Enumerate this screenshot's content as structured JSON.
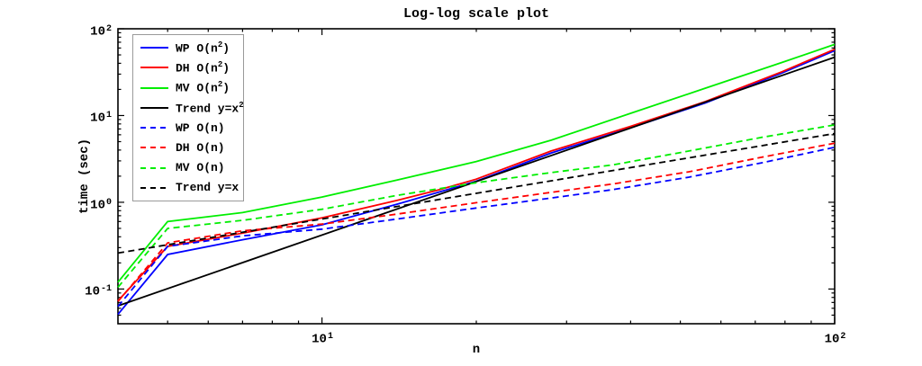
{
  "chart_data": {
    "type": "line",
    "title": "Log-log scale plot",
    "xlabel": "n",
    "ylabel": "time (sec)",
    "log_x": true,
    "log_y": true,
    "x_range": [
      4,
      100
    ],
    "y_range": [
      0.0398,
      100
    ],
    "grid": false,
    "frame_color": "#000000",
    "x_major_ticks": [
      10,
      100
    ],
    "x_minor_ticks": [
      5,
      6,
      7,
      8,
      9,
      20,
      30,
      40,
      50,
      60,
      70,
      80,
      90
    ],
    "y_major_ticks": [
      0.1,
      1,
      10,
      100
    ],
    "y_minor_ticks": [
      0.05,
      0.06,
      0.07,
      0.08,
      0.09,
      0.2,
      0.3,
      0.4,
      0.5,
      0.6,
      0.7,
      0.8,
      0.9,
      2,
      3,
      4,
      5,
      6,
      7,
      8,
      9,
      20,
      30,
      40,
      50,
      60,
      70,
      80,
      90
    ],
    "x_tick_labels": [
      {
        "value": 10,
        "base": "10",
        "exp": "1"
      },
      {
        "value": 100,
        "base": "10",
        "exp": "2"
      }
    ],
    "y_tick_labels": [
      {
        "value": 0.1,
        "base": "10",
        "exp": "-1"
      },
      {
        "value": 1,
        "base": "10",
        "exp": "0"
      },
      {
        "value": 10,
        "base": "10",
        "exp": "1"
      },
      {
        "value": 100,
        "base": "10",
        "exp": "2"
      }
    ],
    "legend_position": "upper-left",
    "series": [
      {
        "key": "wp-n2",
        "legend": [
          {
            "t": "WP O(n"
          },
          {
            "s": "2"
          },
          {
            "t": ")"
          }
        ],
        "color": "#0000ff",
        "style": "solid",
        "points": [
          [
            4,
            0.051
          ],
          [
            5,
            0.25
          ],
          [
            7,
            0.37
          ],
          [
            10,
            0.55
          ],
          [
            14,
            0.95
          ],
          [
            17,
            1.32
          ],
          [
            20,
            1.75
          ],
          [
            28,
            3.7
          ],
          [
            40,
            7.2
          ],
          [
            56,
            14
          ],
          [
            79,
            31
          ],
          [
            100,
            56
          ]
        ]
      },
      {
        "key": "dh-n2",
        "legend": [
          {
            "t": "DH O(n"
          },
          {
            "s": "2"
          },
          {
            "t": ")"
          }
        ],
        "color": "#ff0000",
        "style": "solid",
        "points": [
          [
            4,
            0.073
          ],
          [
            5,
            0.31
          ],
          [
            7,
            0.44
          ],
          [
            10,
            0.66
          ],
          [
            14,
            1.05
          ],
          [
            17,
            1.4
          ],
          [
            20,
            1.85
          ],
          [
            28,
            3.9
          ],
          [
            40,
            7.5
          ],
          [
            56,
            14.5
          ],
          [
            79,
            32
          ],
          [
            100,
            58
          ]
        ]
      },
      {
        "key": "mv-n2",
        "legend": [
          {
            "t": "MV O(n"
          },
          {
            "s": "2"
          },
          {
            "t": ")"
          }
        ],
        "color": "#00ee00",
        "style": "solid",
        "points": [
          [
            4,
            0.12
          ],
          [
            5,
            0.6
          ],
          [
            7,
            0.76
          ],
          [
            10,
            1.15
          ],
          [
            14,
            1.8
          ],
          [
            20,
            2.95
          ],
          [
            28,
            5.2
          ],
          [
            40,
            10.6
          ],
          [
            56,
            20.7
          ],
          [
            79,
            41
          ],
          [
            100,
            66
          ]
        ]
      },
      {
        "key": "trend-x2",
        "legend": [
          {
            "t": "Trend y=x"
          },
          {
            "s": "2"
          }
        ],
        "color": "#000000",
        "style": "solid",
        "points": [
          [
            4,
            0.064
          ],
          [
            100,
            47
          ]
        ]
      },
      {
        "key": "wp-n",
        "legend": [
          {
            "t": "WP O(n)"
          }
        ],
        "color": "#0000ff",
        "style": "dashed",
        "points": [
          [
            4,
            0.063
          ],
          [
            5,
            0.31
          ],
          [
            7,
            0.41
          ],
          [
            10,
            0.49
          ],
          [
            14,
            0.64
          ],
          [
            20,
            0.86
          ],
          [
            28,
            1.12
          ],
          [
            37,
            1.4
          ],
          [
            52,
            1.95
          ],
          [
            72,
            2.85
          ],
          [
            100,
            4.3
          ]
        ]
      },
      {
        "key": "dh-n",
        "legend": [
          {
            "t": "DH O(n)"
          }
        ],
        "color": "#ff0000",
        "style": "dashed",
        "points": [
          [
            4,
            0.072
          ],
          [
            5,
            0.34
          ],
          [
            7,
            0.47
          ],
          [
            10,
            0.56
          ],
          [
            14,
            0.73
          ],
          [
            20,
            0.99
          ],
          [
            28,
            1.3
          ],
          [
            37,
            1.63
          ],
          [
            52,
            2.25
          ],
          [
            72,
            3.3
          ],
          [
            100,
            4.8
          ]
        ]
      },
      {
        "key": "mv-n",
        "legend": [
          {
            "t": "MV O(n)"
          }
        ],
        "color": "#00ee00",
        "style": "dashed",
        "points": [
          [
            4,
            0.105
          ],
          [
            5,
            0.5
          ],
          [
            7,
            0.62
          ],
          [
            10,
            0.83
          ],
          [
            14,
            1.2
          ],
          [
            20,
            1.68
          ],
          [
            28,
            2.2
          ],
          [
            37,
            2.7
          ],
          [
            52,
            3.9
          ],
          [
            72,
            5.6
          ],
          [
            100,
            7.8
          ]
        ]
      },
      {
        "key": "trend-x",
        "legend": [
          {
            "t": "Trend y=x"
          }
        ],
        "color": "#000000",
        "style": "dashed",
        "points": [
          [
            4,
            0.26
          ],
          [
            100,
            6.2
          ]
        ]
      }
    ]
  },
  "layout_note_colors": {
    "background": "#ffffff",
    "axis": "#000000",
    "legend_border": "#9a9a9a"
  }
}
